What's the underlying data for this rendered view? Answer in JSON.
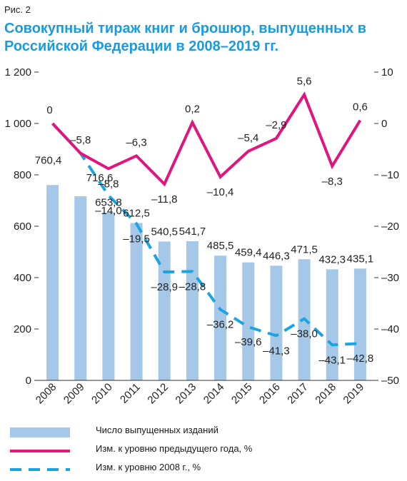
{
  "figure_label": "Рис. 2",
  "title": "Совокупный тираж книг и брошюр, выпущенных в Российской Федерации в 2008–2019 гг.",
  "colors": {
    "bars": "#a6c8e8",
    "prev_year_line": "#e0157e",
    "base2008_line": "#1aa5e0",
    "axis": "#333333"
  },
  "legend": [
    {
      "label": "Число выпущенных изданий",
      "style": "bar",
      "color": "#a6c8e8"
    },
    {
      "label": "Изм. к уровню предыдущего года, %",
      "style": "solid",
      "color": "#e0157e"
    },
    {
      "label": "Изм. к уровню 2008 г., %",
      "style": "dashed",
      "color": "#1aa5e0"
    }
  ],
  "chart_data": {
    "type": "bar",
    "categories": [
      "2008",
      "2009",
      "2010",
      "2011",
      "2012",
      "2013",
      "2014",
      "2015",
      "2016",
      "2017",
      "2018",
      "2019"
    ],
    "series": [
      {
        "name": "Число выпущенных изданий",
        "type": "bar",
        "axis": "left",
        "values": [
          760.4,
          716.6,
          653.8,
          612.5,
          540.5,
          541.7,
          485.5,
          459.4,
          446.3,
          471.5,
          432.3,
          435.1
        ],
        "labels": [
          "760,4",
          "716,6",
          "653,8",
          "612,5",
          "540,5",
          "541,7",
          "485,5",
          "459,4",
          "446,3",
          "471,5",
          "432,3",
          "435,1"
        ]
      },
      {
        "name": "Изм. к уровню предыдущего года, %",
        "type": "line",
        "axis": "right",
        "values": [
          0,
          -5.8,
          -8.8,
          -6.3,
          -11.8,
          0.2,
          -10.4,
          -5.4,
          -2.9,
          5.6,
          -8.3,
          0.6
        ],
        "labels": [
          "0",
          "–5,8",
          "–8,8",
          "–6,3",
          "–11,8",
          "0,2",
          "–10,4",
          "–5,4",
          "–2,9",
          "5,6",
          "–8,3",
          "0,6"
        ]
      },
      {
        "name": "Изм. к уровню 2008 г., %",
        "type": "line",
        "style": "dashed",
        "axis": "right",
        "values": [
          0,
          -5.8,
          -14.0,
          -19.5,
          -28.9,
          -28.8,
          -36.2,
          -39.6,
          -41.3,
          -38.0,
          -43.1,
          -42.8
        ],
        "labels": [
          "",
          "",
          "–14,0",
          "–19,5",
          "–28,9",
          "–28,8",
          "–36,2",
          "–39,6",
          "–41,3",
          "–38,0",
          "–43,1",
          "–42,8"
        ]
      }
    ],
    "y_left": {
      "ylim": [
        0,
        1200
      ],
      "ticks": [
        0,
        200,
        400,
        600,
        800,
        1000,
        1200
      ],
      "tick_labels": [
        "0",
        "200",
        "400",
        "600",
        "800",
        "1 000",
        "1 200"
      ]
    },
    "y_right": {
      "ylim": [
        -50,
        10
      ],
      "ticks": [
        -50,
        -40,
        -30,
        -20,
        -10,
        0,
        10
      ],
      "tick_labels": [
        "–50",
        "–40",
        "–30",
        "–20",
        "–10",
        "0",
        "10"
      ]
    },
    "grid": false,
    "legend_position": "bottom"
  }
}
